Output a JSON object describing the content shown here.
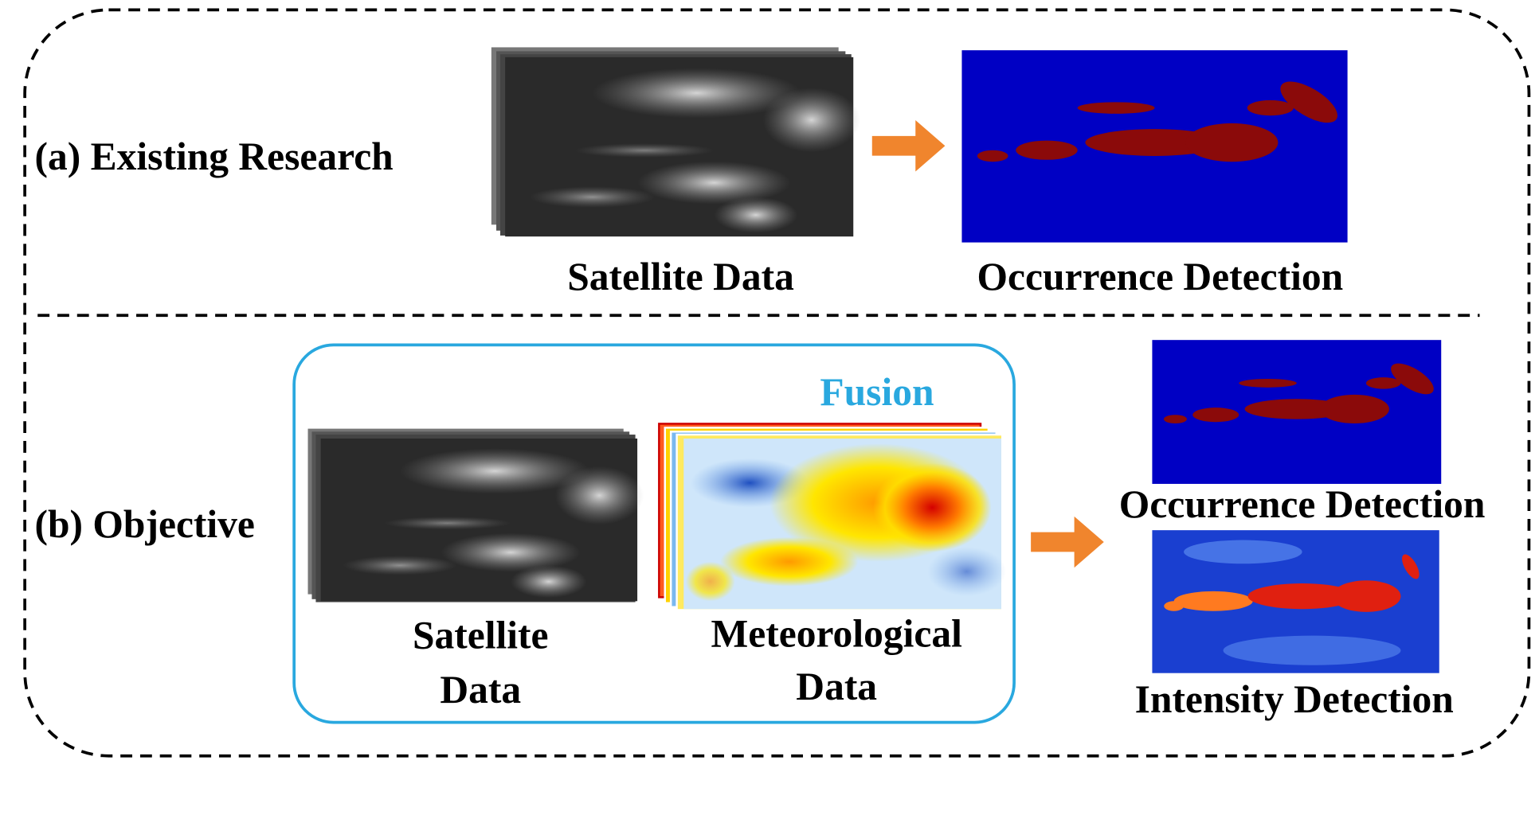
{
  "sections": [
    {
      "label": "(a) Existing Research",
      "input": {
        "label": "Satellite Data"
      },
      "output": {
        "label": "Occurrence Detection"
      }
    },
    {
      "label": "(b) Objective",
      "fusion": {
        "title": "Fusion",
        "inputs": [
          {
            "label_lines": [
              "Satellite",
              "Data"
            ]
          },
          {
            "label_lines": [
              "Meteorological",
              "Data"
            ]
          }
        ]
      },
      "outputs": [
        {
          "label": "Occurrence Detection"
        },
        {
          "label": "Intensity Detection"
        }
      ]
    }
  ]
}
